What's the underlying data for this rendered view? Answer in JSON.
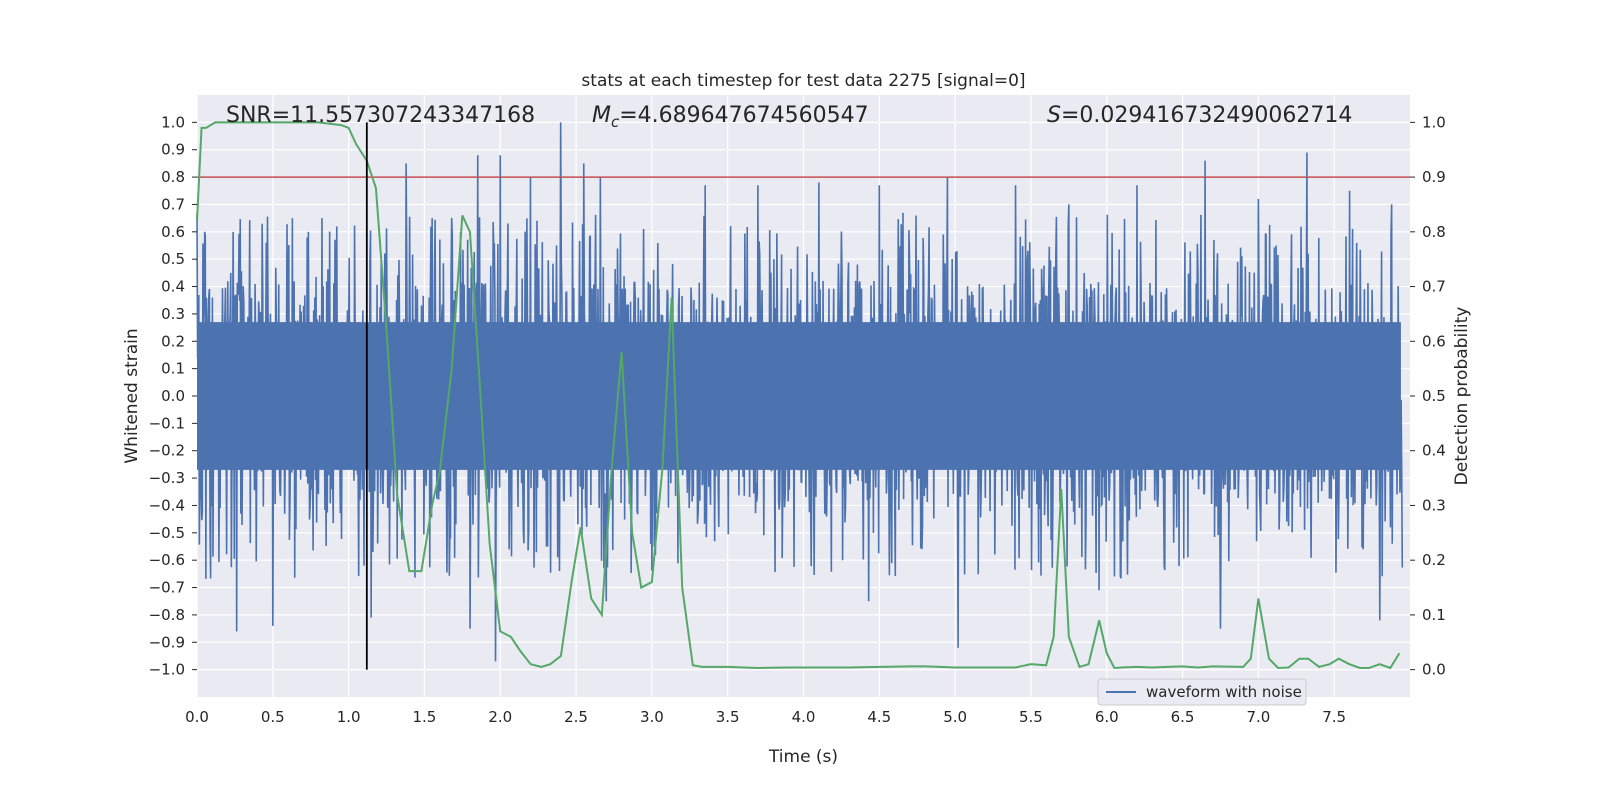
{
  "chart_data": {
    "type": "line",
    "title": "stats at each timestep for test data 2275 [signal=0]",
    "xlabel": "Time (s)",
    "ylabel": "Whitened strain",
    "ylabel_right": "Detection probability",
    "xlim": [
      0.0,
      8.0
    ],
    "ylim": [
      -1.1,
      1.1
    ],
    "ylim_right": [
      -0.05,
      1.05
    ],
    "x_ticks": [
      0.0,
      0.5,
      1.0,
      1.5,
      2.0,
      2.5,
      3.0,
      3.5,
      4.0,
      4.5,
      5.0,
      5.5,
      6.0,
      6.5,
      7.0,
      7.5
    ],
    "x_tick_labels": [
      "0.0",
      "0.5",
      "1.0",
      "1.5",
      "2.0",
      "2.5",
      "3.0",
      "3.5",
      "4.0",
      "4.5",
      "5.0",
      "5.5",
      "6.0",
      "6.5",
      "7.0",
      "7.5"
    ],
    "y_ticks": [
      1.0,
      0.9,
      0.8,
      0.7,
      0.6,
      0.5,
      0.4,
      0.3,
      0.2,
      0.1,
      0.0,
      -0.1,
      -0.2,
      -0.3,
      -0.4,
      -0.5,
      -0.6,
      -0.7,
      -0.8,
      -0.9,
      -1.0
    ],
    "y_tick_labels": [
      "1.0",
      "0.9",
      "0.8",
      "0.7",
      "0.6",
      "0.5",
      "0.4",
      "0.3",
      "0.2",
      "0.1",
      "0.0",
      "−0.1",
      "−0.2",
      "−0.3",
      "−0.4",
      "−0.5",
      "−0.6",
      "−0.7",
      "−0.8",
      "−0.9",
      "−1.0"
    ],
    "y_right_ticks": [
      1.0,
      0.9,
      0.8,
      0.7,
      0.6,
      0.5,
      0.4,
      0.3,
      0.2,
      0.1,
      0.0
    ],
    "y_right_tick_labels": [
      "1.0",
      "0.9",
      "0.8",
      "0.7",
      "0.6",
      "0.5",
      "0.4",
      "0.3",
      "0.2",
      "0.1",
      "0.0"
    ],
    "annotations": {
      "snr": "SNR=11.557307243347168",
      "mc_symbol": "M",
      "mc_sub": "c",
      "mc_value": "=4.689647674560547",
      "s_symbol": "S",
      "s_value": "=0.029416732490062714"
    },
    "threshold_line": {
      "axis": "right",
      "value": 0.9,
      "color": "#c44e52"
    },
    "marker_line": {
      "x": 1.12,
      "y_from": -1.0,
      "y_to": 1.0,
      "color": "#000000"
    },
    "legend": {
      "position": "lower-right",
      "entries": [
        "waveform with noise"
      ]
    },
    "series": [
      {
        "name": "waveform with noise",
        "axis": "left",
        "color": "#4c72b0",
        "style": "dense-noise",
        "sample_rate_hz": 256,
        "typical_envelope": 0.42,
        "peaks_upper": [
          {
            "x": 0.05,
            "y": 0.6
          },
          {
            "x": 0.24,
            "y": 0.6
          },
          {
            "x": 0.43,
            "y": 0.63
          },
          {
            "x": 0.63,
            "y": 0.65
          },
          {
            "x": 0.92,
            "y": 0.62
          },
          {
            "x": 1.15,
            "y": 0.7
          },
          {
            "x": 1.38,
            "y": 0.85
          },
          {
            "x": 1.55,
            "y": 0.65
          },
          {
            "x": 1.85,
            "y": 0.88
          },
          {
            "x": 2.0,
            "y": 0.88
          },
          {
            "x": 2.2,
            "y": 0.8
          },
          {
            "x": 2.4,
            "y": 1.0
          },
          {
            "x": 2.55,
            "y": 0.85
          },
          {
            "x": 2.66,
            "y": 0.8
          },
          {
            "x": 3.35,
            "y": 0.77
          },
          {
            "x": 3.7,
            "y": 0.77
          },
          {
            "x": 4.1,
            "y": 0.78
          },
          {
            "x": 4.5,
            "y": 0.77
          },
          {
            "x": 4.95,
            "y": 0.8
          },
          {
            "x": 5.4,
            "y": 0.77
          },
          {
            "x": 5.75,
            "y": 0.7
          },
          {
            "x": 6.2,
            "y": 0.77
          },
          {
            "x": 6.65,
            "y": 0.86
          },
          {
            "x": 7.0,
            "y": 0.72
          },
          {
            "x": 7.32,
            "y": 0.89
          },
          {
            "x": 7.6,
            "y": 0.75
          },
          {
            "x": 7.88,
            "y": 0.7
          }
        ],
        "peaks_lower": [
          {
            "x": 0.26,
            "y": -0.86
          },
          {
            "x": 0.5,
            "y": -0.84
          },
          {
            "x": 1.1,
            "y": -0.62
          },
          {
            "x": 1.15,
            "y": -0.81
          },
          {
            "x": 1.8,
            "y": -0.85
          },
          {
            "x": 1.97,
            "y": -0.97
          },
          {
            "x": 2.7,
            "y": -0.75
          },
          {
            "x": 4.43,
            "y": -0.75
          },
          {
            "x": 5.02,
            "y": -0.92
          },
          {
            "x": 5.95,
            "y": -0.71
          },
          {
            "x": 6.75,
            "y": -0.85
          },
          {
            "x": 7.8,
            "y": -0.82
          }
        ]
      },
      {
        "name": "detection probability",
        "axis": "right",
        "color": "#55a868",
        "x": [
          0.0,
          0.03,
          0.06,
          0.12,
          0.2,
          0.4,
          0.6,
          0.8,
          0.95,
          1.0,
          1.05,
          1.12,
          1.18,
          1.25,
          1.32,
          1.4,
          1.48,
          1.55,
          1.6,
          1.68,
          1.75,
          1.8,
          1.87,
          1.93,
          2.0,
          2.07,
          2.13,
          2.2,
          2.27,
          2.33,
          2.4,
          2.47,
          2.53,
          2.6,
          2.67,
          2.73,
          2.8,
          2.87,
          2.93,
          3.0,
          3.07,
          3.13,
          3.2,
          3.27,
          3.33,
          3.5,
          3.7,
          3.9,
          4.1,
          4.3,
          4.5,
          4.7,
          4.8,
          4.9,
          5.0,
          5.2,
          5.4,
          5.5,
          5.6,
          5.65,
          5.7,
          5.75,
          5.82,
          5.88,
          5.95,
          6.0,
          6.05,
          6.1,
          6.2,
          6.3,
          6.4,
          6.5,
          6.6,
          6.7,
          6.9,
          6.95,
          7.0,
          7.07,
          7.13,
          7.2,
          7.27,
          7.33,
          7.4,
          7.47,
          7.53,
          7.6,
          7.67,
          7.73,
          7.8,
          7.87,
          7.93
        ],
        "values": [
          0.82,
          0.99,
          0.99,
          1.0,
          1.0,
          1.0,
          1.0,
          1.0,
          0.995,
          0.99,
          0.96,
          0.93,
          0.88,
          0.62,
          0.32,
          0.18,
          0.18,
          0.3,
          0.36,
          0.55,
          0.83,
          0.8,
          0.5,
          0.23,
          0.07,
          0.06,
          0.035,
          0.01,
          0.005,
          0.01,
          0.025,
          0.16,
          0.26,
          0.13,
          0.1,
          0.35,
          0.58,
          0.25,
          0.15,
          0.16,
          0.37,
          0.68,
          0.15,
          0.008,
          0.005,
          0.005,
          0.003,
          0.004,
          0.004,
          0.004,
          0.005,
          0.006,
          0.006,
          0.005,
          0.004,
          0.004,
          0.004,
          0.01,
          0.008,
          0.06,
          0.33,
          0.06,
          0.005,
          0.01,
          0.09,
          0.03,
          0.003,
          0.004,
          0.005,
          0.004,
          0.005,
          0.006,
          0.004,
          0.006,
          0.005,
          0.02,
          0.13,
          0.02,
          0.003,
          0.004,
          0.02,
          0.02,
          0.005,
          0.01,
          0.02,
          0.01,
          0.003,
          0.003,
          0.01,
          0.003,
          0.03
        ]
      }
    ]
  }
}
